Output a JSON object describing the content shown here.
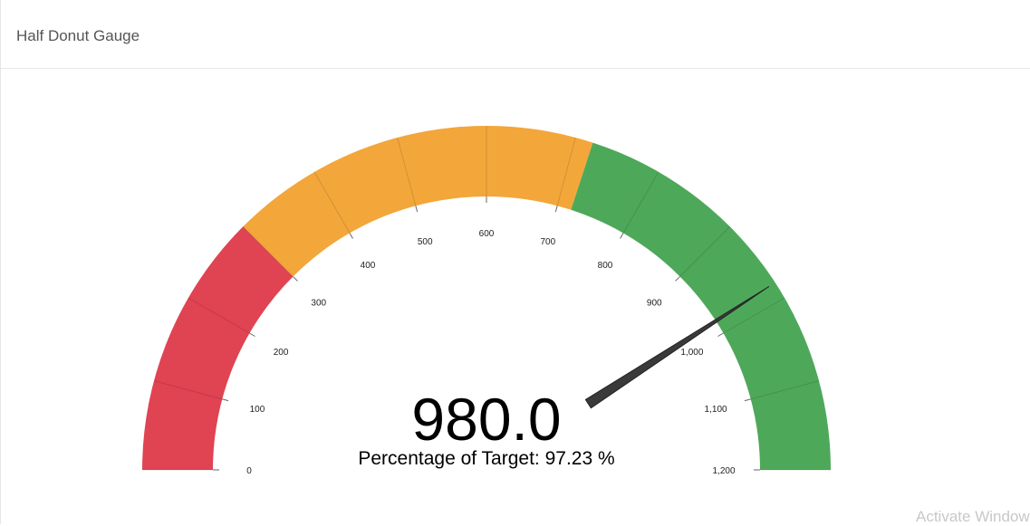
{
  "panel": {
    "title": "Half Donut Gauge"
  },
  "chart_data": {
    "type": "gauge",
    "value": 980,
    "value_label": "980.0",
    "subtitle": "Percentage of Target: 97.23 %",
    "min": 0,
    "max": 1200,
    "ticks": [
      {
        "value": 0,
        "label": "0"
      },
      {
        "value": 100,
        "label": "100"
      },
      {
        "value": 200,
        "label": "200"
      },
      {
        "value": 300,
        "label": "300"
      },
      {
        "value": 400,
        "label": "400"
      },
      {
        "value": 500,
        "label": "500"
      },
      {
        "value": 600,
        "label": "600"
      },
      {
        "value": 700,
        "label": "700"
      },
      {
        "value": 800,
        "label": "800"
      },
      {
        "value": 900,
        "label": "900"
      },
      {
        "value": 1000,
        "label": "1,000"
      },
      {
        "value": 1100,
        "label": "1,100"
      },
      {
        "value": 1200,
        "label": "1,200"
      }
    ],
    "bands": [
      {
        "from": 0,
        "to": 300,
        "color": "#e04352"
      },
      {
        "from": 300,
        "to": 720,
        "color": "#f3a63a"
      },
      {
        "from": 720,
        "to": 1200,
        "color": "#4ea85a"
      }
    ],
    "needle_color": "#3a3a3a"
  },
  "watermark": {
    "text": "Activate Windows"
  }
}
